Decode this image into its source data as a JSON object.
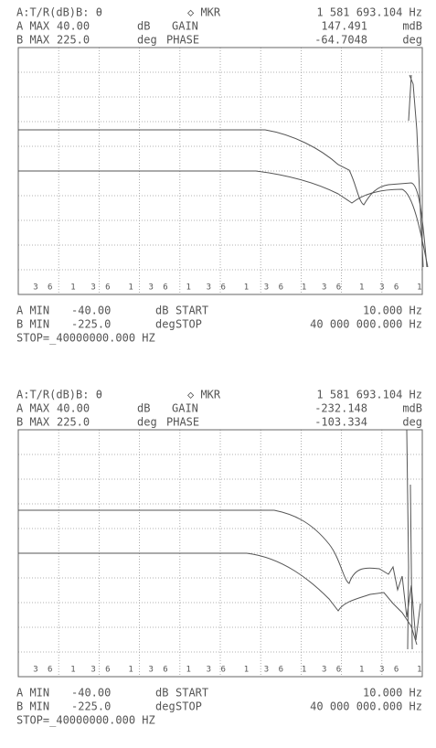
{
  "plots": [
    {
      "header": [
        [
          "A:T/R(dB)B: θ",
          "◇ MKR",
          "1 581 693.104 Hz"
        ],
        [
          "A MAX",
          "40.00",
          "dB",
          "GAIN",
          "147.491",
          "mdB"
        ],
        [
          "B MAX",
          "225.0",
          "deg",
          "PHASE",
          "-64.7048",
          "deg"
        ]
      ],
      "axis_marks": [
        "3",
        "6",
        "1"
      ],
      "footer": [
        [
          "A MIN",
          "-40.00",
          "dB",
          "START",
          "10.000 Hz"
        ],
        [
          "B MIN",
          "-225.0",
          "deg",
          "STOP",
          "40 000 000.000 Hz"
        ],
        [
          "STOP=_40000000.000 HZ"
        ]
      ]
    },
    {
      "header": [
        [
          "A:T/R(dB)B: θ",
          "◇ MKR",
          "1 581 693.104 Hz"
        ],
        [
          "A MAX",
          "40.00",
          "dB",
          "GAIN",
          "-232.148",
          "mdB"
        ],
        [
          "B MAX",
          "225.0",
          "deg",
          "PHASE",
          "-103.334",
          "deg"
        ]
      ],
      "axis_marks": [
        "3",
        "6",
        "1"
      ],
      "footer": [
        [
          "A MIN",
          "-40.00",
          "dB",
          "START",
          "10.000 Hz"
        ],
        [
          "B MIN",
          "-225.0",
          "deg",
          "STOP",
          "40 000 000.000 Hz"
        ],
        [
          "STOP=_40000000.000 HZ"
        ]
      ]
    }
  ]
}
